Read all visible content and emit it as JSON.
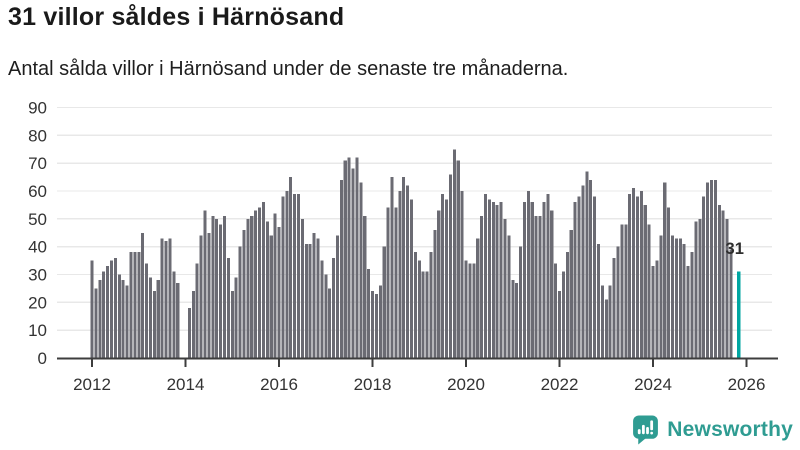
{
  "header": {
    "title": "31 villor såldes i Härnösand",
    "subtitle": "Antal sålda villor i Härnösand under de senaste tre månaderna."
  },
  "chart_data": {
    "type": "bar",
    "title": "31 villor såldes i Härnösand",
    "xlabel": "",
    "ylabel": "",
    "ylim": [
      0,
      90
    ],
    "y_ticks": [
      0,
      10,
      20,
      30,
      40,
      50,
      60,
      70,
      80,
      90
    ],
    "x_tick_labels": [
      "2012",
      "2014",
      "2016",
      "2018",
      "2020",
      "2022",
      "2024",
      "2026"
    ],
    "grid": "horizontal",
    "legend": "none",
    "bars_per_year": 12,
    "values": [
      35,
      25,
      28,
      31,
      33,
      35,
      36,
      30,
      28,
      26,
      38,
      38,
      38,
      45,
      34,
      29,
      24,
      28,
      43,
      42,
      43,
      31,
      27,
      0,
      0,
      18,
      24,
      34,
      44,
      53,
      45,
      51,
      50,
      48,
      51,
      36,
      24,
      29,
      40,
      46,
      50,
      51,
      53,
      54,
      56,
      49,
      44,
      52,
      47,
      58,
      60,
      65,
      59,
      59,
      50,
      41,
      41,
      45,
      43,
      35,
      30,
      25,
      36,
      44,
      64,
      71,
      72,
      68,
      72,
      63,
      51,
      32,
      24,
      23,
      26,
      40,
      54,
      65,
      54,
      60,
      65,
      62,
      57,
      38,
      35,
      31,
      31,
      38,
      46,
      53,
      59,
      57,
      66,
      75,
      71,
      60,
      35,
      34,
      34,
      43,
      51,
      59,
      57,
      56,
      55,
      56,
      50,
      44,
      28,
      27,
      40,
      56,
      60,
      56,
      51,
      51,
      56,
      59,
      53,
      34,
      24,
      31,
      38,
      46,
      56,
      58,
      62,
      67,
      64,
      58,
      41,
      26,
      21,
      26,
      36,
      40,
      48,
      48,
      59,
      61,
      58,
      60,
      55,
      48,
      33,
      35,
      44,
      63,
      54,
      44,
      43,
      43,
      41,
      33,
      38,
      49,
      50,
      58,
      63,
      64,
      64,
      55,
      53,
      50,
      39
    ],
    "highlight": {
      "label": "31",
      "value": 31
    },
    "colors": {
      "bar": "#6B6B73",
      "highlight": "#00A6A2",
      "grid": "#E8E8E8",
      "axis": "#3D3D3D",
      "tick_text": "#333333",
      "annotation_text": "#2E2E2E"
    }
  },
  "footer": {
    "brand": "Newsworthy",
    "brand_color": "#2F9C92",
    "logo_icon": "bar-chart-speech-bubble-icon"
  }
}
